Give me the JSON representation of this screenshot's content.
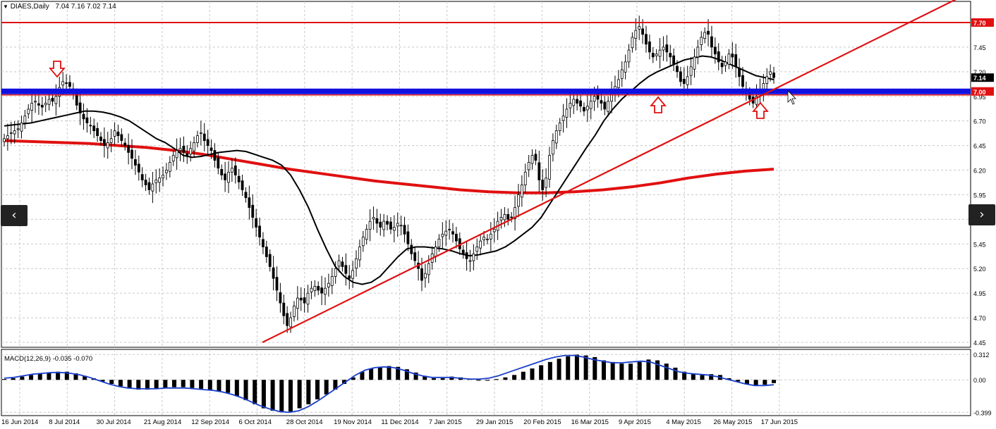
{
  "window": {
    "symbol_label": "DIAES,Daily",
    "ohlc_label": "7.04 7.16 7.02 7.14"
  },
  "nav": {
    "prev_glyph": "‹",
    "next_glyph": "›"
  },
  "colors": {
    "background": "#ffffff",
    "grid": "#c8c8c8",
    "bull": "#ffffff",
    "bear": "#000000",
    "wick": "#000000",
    "ma_fast": "#000000",
    "ma_slow": "#e01010",
    "resistance": "#e01010",
    "support_band": "#1010e0",
    "trendline": "#e01010",
    "macd_hist": "#000000",
    "macd_signal": "#1a3fcc",
    "arrow": "#e01010"
  },
  "chart_data": [
    {
      "type": "candlestick",
      "title": "DIAES,Daily",
      "ohlc_last": {
        "open": 7.04,
        "high": 7.16,
        "low": 7.02,
        "close": 7.14
      },
      "ylim": [
        4.4,
        7.8
      ],
      "y_ticks": [
        "7.70",
        "7.45",
        "7.20",
        "6.95",
        "6.70",
        "6.45",
        "6.20",
        "5.95",
        "5.70",
        "5.45",
        "5.20",
        "4.95",
        "4.70",
        "4.45"
      ],
      "y_tick_values": [
        7.7,
        7.45,
        7.2,
        6.95,
        6.7,
        6.45,
        6.2,
        5.95,
        5.7,
        5.45,
        5.2,
        4.95,
        4.7,
        4.45
      ],
      "price_labels": [
        {
          "text": "7.70",
          "value": 7.7,
          "style": "red"
        },
        {
          "text": "7.14",
          "value": 7.14,
          "style": "black"
        },
        {
          "text": "7.00",
          "value": 7.0,
          "style": "red"
        }
      ],
      "x_tick_labels": [
        "16 Jun 2014",
        "8 Jul 2014",
        "30 Jul 2014",
        "21 Aug 2014",
        "12 Sep 2014",
        "6 Oct 2014",
        "28 Oct 2014",
        "19 Nov 2014",
        "11 Dec 2014",
        "7 Jan 2015",
        "29 Jan 2015",
        "20 Feb 2015",
        "16 Mar 2015",
        "9 Apr 2015",
        "4 May 2015",
        "26 May 2015",
        "17 Jun 2015"
      ],
      "closes": [
        6.52,
        6.55,
        6.58,
        6.6,
        6.62,
        6.68,
        6.75,
        6.82,
        6.88,
        6.9,
        6.86,
        6.84,
        6.88,
        6.92,
        6.9,
        6.95,
        7.04,
        7.1,
        7.08,
        7.05,
        6.98,
        6.86,
        6.78,
        6.72,
        6.68,
        6.65,
        6.6,
        6.55,
        6.5,
        6.45,
        6.48,
        6.52,
        6.6,
        6.55,
        6.5,
        6.45,
        6.38,
        6.32,
        6.25,
        6.18,
        6.1,
        6.05,
        6.0,
        6.06,
        6.1,
        6.12,
        6.15,
        6.2,
        6.28,
        6.35,
        6.4,
        6.42,
        6.38,
        6.35,
        6.42,
        6.48,
        6.55,
        6.58,
        6.5,
        6.45,
        6.4,
        6.3,
        6.22,
        6.15,
        6.1,
        6.18,
        6.22,
        6.15,
        6.08,
        6.0,
        5.92,
        5.82,
        5.72,
        5.62,
        5.52,
        5.42,
        5.32,
        5.22,
        5.1,
        4.98,
        4.85,
        4.72,
        4.62,
        4.7,
        4.82,
        4.9,
        4.88,
        4.85,
        4.95,
        5.0,
        5.02,
        4.98,
        4.95,
        5.0,
        5.05,
        5.12,
        5.2,
        5.28,
        5.22,
        5.15,
        5.1,
        5.18,
        5.3,
        5.42,
        5.52,
        5.6,
        5.68,
        5.72,
        5.66,
        5.62,
        5.68,
        5.65,
        5.6,
        5.62,
        5.66,
        5.64,
        5.55,
        5.45,
        5.35,
        5.28,
        5.2,
        5.08,
        5.15,
        5.25,
        5.35,
        5.42,
        5.5,
        5.55,
        5.58,
        5.6,
        5.55,
        5.48,
        5.4,
        5.35,
        5.3,
        5.28,
        5.35,
        5.42,
        5.48,
        5.52,
        5.5,
        5.55,
        5.6,
        5.68,
        5.72,
        5.75,
        5.7,
        5.72,
        5.82,
        5.95,
        6.05,
        6.18,
        6.28,
        6.35,
        6.3,
        6.1,
        6.0,
        6.12,
        6.35,
        6.5,
        6.6,
        6.68,
        6.75,
        6.82,
        6.88,
        6.92,
        6.88,
        6.85,
        6.8,
        6.85,
        6.9,
        6.95,
        6.92,
        6.88,
        6.82,
        6.9,
        6.98,
        7.05,
        7.12,
        7.22,
        7.3,
        7.42,
        7.55,
        7.62,
        7.66,
        7.58,
        7.48,
        7.4,
        7.35,
        7.38,
        7.42,
        7.45,
        7.4,
        7.35,
        7.28,
        7.2,
        7.1,
        7.08,
        7.15,
        7.25,
        7.35,
        7.45,
        7.55,
        7.6,
        7.58,
        7.45,
        7.38,
        7.3,
        7.25,
        7.3,
        7.38,
        7.35,
        7.25,
        7.15,
        7.05,
        6.98,
        6.92,
        6.88,
        6.95,
        7.02,
        7.08,
        7.15,
        7.2,
        7.14
      ],
      "series": [
        {
          "kind": "ma_fast",
          "values": [
            6.65,
            6.66,
            6.67,
            6.68,
            6.7,
            6.72,
            6.74,
            6.76,
            6.78,
            6.8,
            6.8,
            6.79,
            6.77,
            6.74,
            6.7,
            6.64,
            6.58,
            6.52,
            6.48,
            6.42,
            6.35,
            6.33,
            6.34,
            6.36,
            6.38,
            6.39,
            6.4,
            6.39,
            6.36,
            6.33,
            6.3,
            6.25,
            6.15,
            6.0,
            5.82,
            5.6,
            5.4,
            5.22,
            5.12,
            5.06,
            5.04,
            5.06,
            5.12,
            5.22,
            5.32,
            5.4,
            5.42,
            5.42,
            5.41,
            5.4,
            5.38,
            5.35,
            5.33,
            5.34,
            5.36,
            5.38,
            5.42,
            5.48,
            5.55,
            5.62,
            5.72,
            5.86,
            6.0,
            6.14,
            6.28,
            6.42,
            6.55,
            6.7,
            6.82,
            6.92,
            7.0,
            7.08,
            7.15,
            7.2,
            7.24,
            7.28,
            7.32,
            7.34,
            7.36,
            7.35,
            7.32,
            7.28,
            7.24,
            7.2,
            7.16,
            7.14,
            7.12
          ]
        },
        {
          "kind": "ma_slow",
          "values": [
            6.5,
            6.49,
            6.48,
            6.47,
            6.45,
            6.43,
            6.4,
            6.36,
            6.31,
            6.26,
            6.21,
            6.17,
            6.13,
            6.09,
            6.06,
            6.03,
            6.0,
            5.98,
            5.97,
            5.97,
            5.98,
            6.0,
            6.03,
            6.07,
            6.12,
            6.16,
            6.19,
            6.21
          ]
        }
      ],
      "horizontal_lines": [
        {
          "value": 7.7,
          "color": "resistance"
        },
        {
          "value": 7.0,
          "color": "support_band"
        }
      ],
      "trendline": {
        "from": {
          "x": "6 Oct 2014",
          "y": 4.45
        },
        "to": {
          "x": "17 Jun 2015",
          "y": 7.05
        }
      },
      "markers": [
        {
          "direction": "down",
          "near": "8 Jul 2014"
        },
        {
          "direction": "up",
          "near": "4 May 2015"
        },
        {
          "direction": "up",
          "near": "17 Jun 2015"
        }
      ]
    },
    {
      "type": "macd",
      "title": "MACD(12,26,9) -0.035 -0.070",
      "ylim": [
        -0.44,
        0.34
      ],
      "y_ticks": [
        "0.312",
        "0.00",
        "-0.399"
      ],
      "y_tick_values": [
        0.312,
        0.0,
        -0.399
      ],
      "histogram": [
        0.01,
        0.02,
        0.04,
        0.06,
        0.08,
        0.09,
        0.1,
        0.1,
        0.08,
        0.05,
        0.02,
        -0.02,
        -0.05,
        -0.08,
        -0.1,
        -0.12,
        -0.12,
        -0.11,
        -0.1,
        -0.09,
        -0.09,
        -0.1,
        -0.11,
        -0.12,
        -0.14,
        -0.16,
        -0.2,
        -0.25,
        -0.3,
        -0.35,
        -0.38,
        -0.4,
        -0.39,
        -0.35,
        -0.3,
        -0.24,
        -0.18,
        -0.12,
        -0.05,
        0.03,
        0.1,
        0.14,
        0.16,
        0.17,
        0.16,
        0.13,
        0.09,
        0.05,
        0.02,
        0.02,
        0.04,
        0.03,
        0.01,
        -0.01,
        -0.01,
        0.01,
        0.03,
        0.06,
        0.1,
        0.14,
        0.18,
        0.22,
        0.26,
        0.29,
        0.31,
        0.3,
        0.28,
        0.24,
        0.22,
        0.2,
        0.2,
        0.22,
        0.25,
        0.24,
        0.2,
        0.15,
        0.1,
        0.08,
        0.06,
        0.07,
        0.06,
        0.02,
        -0.02,
        -0.05,
        -0.07,
        -0.06,
        -0.04
      ],
      "signal": [
        0.02,
        0.03,
        0.05,
        0.07,
        0.08,
        0.09,
        0.09,
        0.08,
        0.06,
        0.03,
        -0.01,
        -0.05,
        -0.08,
        -0.1,
        -0.11,
        -0.11,
        -0.11,
        -0.1,
        -0.1,
        -0.1,
        -0.11,
        -0.12,
        -0.13,
        -0.15,
        -0.18,
        -0.22,
        -0.27,
        -0.32,
        -0.36,
        -0.39,
        -0.4,
        -0.38,
        -0.33,
        -0.26,
        -0.18,
        -0.1,
        -0.02,
        0.06,
        0.12,
        0.15,
        0.16,
        0.15,
        0.12,
        0.08,
        0.05,
        0.03,
        0.03,
        0.03,
        0.02,
        0.01,
        0.01,
        0.02,
        0.05,
        0.09,
        0.13,
        0.17,
        0.21,
        0.25,
        0.28,
        0.3,
        0.3,
        0.28,
        0.25,
        0.23,
        0.21,
        0.21,
        0.22,
        0.23,
        0.22,
        0.18,
        0.14,
        0.1,
        0.08,
        0.07,
        0.06,
        0.04,
        0.01,
        -0.02,
        -0.05,
        -0.07,
        -0.07,
        -0.06
      ]
    }
  ]
}
